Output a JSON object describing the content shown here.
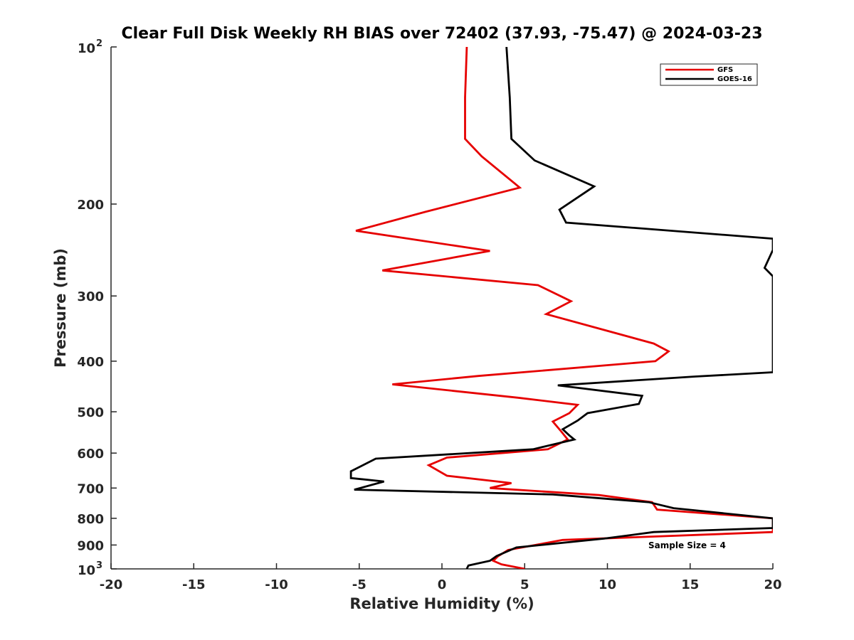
{
  "chart_data": {
    "type": "line",
    "title": "Clear Full Disk Weekly RH BIAS over 72402 (37.93, -75.47) @ 2024-03-23",
    "xlabel": "Relative Humidity (%)",
    "ylabel": "Pressure (mb)",
    "xlim": [
      -20,
      20
    ],
    "ylim": [
      100,
      1000
    ],
    "yscale": "log",
    "yreverse": true,
    "grid": false,
    "legend_location": "top-right",
    "x_ticks": [
      -20,
      -15,
      -10,
      -5,
      0,
      5,
      10,
      15,
      20
    ],
    "x_tick_labels": [
      "-20",
      "-15",
      "-10",
      "-5",
      "0",
      "5",
      "10",
      "15",
      "20"
    ],
    "y_ticks": [
      {
        "value": 100,
        "base": "10",
        "exp": "2"
      },
      {
        "value": 200,
        "label": "200"
      },
      {
        "value": 300,
        "label": "300"
      },
      {
        "value": 400,
        "label": "400"
      },
      {
        "value": 500,
        "label": "500"
      },
      {
        "value": 600,
        "label": "600"
      },
      {
        "value": 700,
        "label": "700"
      },
      {
        "value": 800,
        "label": "800"
      },
      {
        "value": 900,
        "label": "900"
      },
      {
        "value": 1000,
        "base": "10",
        "exp": "3"
      }
    ],
    "annotation": "Sample Size = 4",
    "series": [
      {
        "name": "GFS",
        "color": "#e60000",
        "points": [
          [
            1.5,
            100
          ],
          [
            1.4,
            125
          ],
          [
            1.4,
            150
          ],
          [
            2.4,
            162
          ],
          [
            4.7,
            186
          ],
          [
            -1.0,
            207
          ],
          [
            -5.2,
            225
          ],
          [
            2.9,
            246
          ],
          [
            -3.6,
            268
          ],
          [
            5.8,
            286
          ],
          [
            7.8,
            307
          ],
          [
            6.3,
            325
          ],
          [
            12.8,
            370
          ],
          [
            13.7,
            383
          ],
          [
            12.9,
            400
          ],
          [
            2.2,
            427
          ],
          [
            -3.0,
            443
          ],
          [
            4.6,
            470
          ],
          [
            8.2,
            485
          ],
          [
            7.7,
            503
          ],
          [
            6.7,
            522
          ],
          [
            7.2,
            545
          ],
          [
            7.6,
            565
          ],
          [
            6.4,
            590
          ],
          [
            0.3,
            612
          ],
          [
            -0.8,
            633
          ],
          [
            0.3,
            663
          ],
          [
            4.2,
            685
          ],
          [
            2.9,
            700
          ],
          [
            9.5,
            722
          ],
          [
            12.7,
            745
          ],
          [
            13.0,
            770
          ],
          [
            20.0,
            800
          ],
          [
            20.0,
            835
          ],
          [
            20.0,
            850
          ],
          [
            7.3,
            880
          ],
          [
            4.0,
            920
          ],
          [
            3.4,
            945
          ],
          [
            3.1,
            965
          ],
          [
            3.6,
            980
          ],
          [
            5.0,
            1000
          ]
        ]
      },
      {
        "name": "GOES-16",
        "color": "#000000",
        "points": [
          [
            3.9,
            100
          ],
          [
            4.1,
            125
          ],
          [
            4.2,
            150
          ],
          [
            5.6,
            165
          ],
          [
            9.2,
            185
          ],
          [
            7.1,
            205
          ],
          [
            7.5,
            217
          ],
          [
            20.0,
            233
          ],
          [
            20.0,
            245
          ],
          [
            19.5,
            265
          ],
          [
            20.0,
            275
          ],
          [
            20.0,
            420
          ],
          [
            15.3,
            428
          ],
          [
            7.0,
            445
          ],
          [
            12.1,
            466
          ],
          [
            11.9,
            483
          ],
          [
            8.8,
            503
          ],
          [
            8.2,
            520
          ],
          [
            7.3,
            540
          ],
          [
            7.7,
            555
          ],
          [
            8.0,
            565
          ],
          [
            5.5,
            590
          ],
          [
            -4.0,
            615
          ],
          [
            -5.5,
            650
          ],
          [
            -5.5,
            670
          ],
          [
            -3.5,
            680
          ],
          [
            -5.3,
            705
          ],
          [
            6.7,
            720
          ],
          [
            12.5,
            745
          ],
          [
            14.0,
            765
          ],
          [
            20.0,
            800
          ],
          [
            20.0,
            820
          ],
          [
            20.0,
            835
          ],
          [
            12.8,
            850
          ],
          [
            9.8,
            875
          ],
          [
            4.5,
            910
          ],
          [
            3.3,
            945
          ],
          [
            2.9,
            965
          ],
          [
            1.6,
            985
          ],
          [
            1.5,
            1000
          ]
        ]
      }
    ]
  }
}
